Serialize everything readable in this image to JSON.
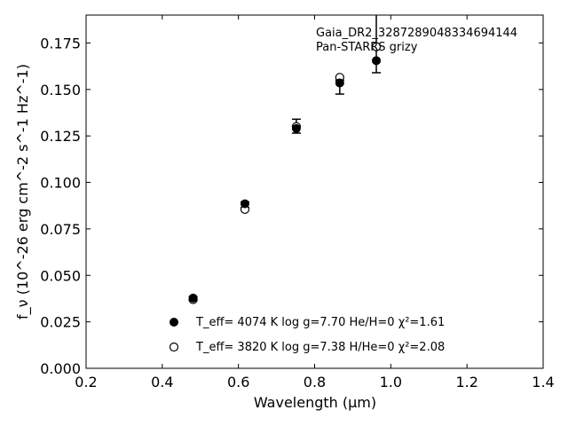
{
  "chart_data": {
    "type": "scatter",
    "title": "",
    "annotations": [
      "Gaia_DR2_3287289048334694144",
      "Pan-STARRS grizy"
    ],
    "xlabel": "Wavelength (μm)",
    "ylabel": "f_ν (10^-26 erg cm^-2 s^-1 Hz^-1)",
    "xlim": [
      0.2,
      1.4
    ],
    "ylim": [
      0.0,
      0.19
    ],
    "xticks": [
      0.2,
      0.4,
      0.6,
      0.8,
      1.0,
      1.2,
      1.4
    ],
    "xtick_labels": [
      "0.2",
      "0.4",
      "0.6",
      "0.8",
      "1.0",
      "1.2",
      "1.4"
    ],
    "yticks": [
      0.0,
      0.025,
      0.05,
      0.075,
      0.1,
      0.125,
      0.15,
      0.175
    ],
    "ytick_labels": [
      "0.000",
      "0.025",
      "0.050",
      "0.075",
      "0.100",
      "0.125",
      "0.150",
      "0.175"
    ],
    "grid": false,
    "legend_position": "bottom-center",
    "observed": {
      "x": [
        0.481,
        0.617,
        0.752,
        0.866,
        0.962
      ],
      "y": [
        0.0375,
        0.088,
        0.13,
        0.153,
        0.174
      ],
      "yerr_low": [
        0.001,
        0.0015,
        0.0035,
        0.0055,
        0.015
      ],
      "yerr_high": [
        0.001,
        0.0015,
        0.004,
        0.002,
        0.018
      ]
    },
    "series": [
      {
        "name": "T_eff=  4074 K  log g=7.70  He/H=0  χ²=1.61",
        "marker": "filled-circle",
        "x": [
          0.481,
          0.617,
          0.752,
          0.866,
          0.962
        ],
        "y": [
          0.0378,
          0.0885,
          0.129,
          0.1535,
          0.1655
        ]
      },
      {
        "name": "T_eff=  3820 K  log g=7.38  H/He=0  χ²=2.08",
        "marker": "open-circle",
        "x": [
          0.481,
          0.617,
          0.752,
          0.866,
          0.962
        ],
        "y": [
          0.037,
          0.0855,
          0.13,
          0.1565,
          0.173
        ]
      }
    ]
  }
}
